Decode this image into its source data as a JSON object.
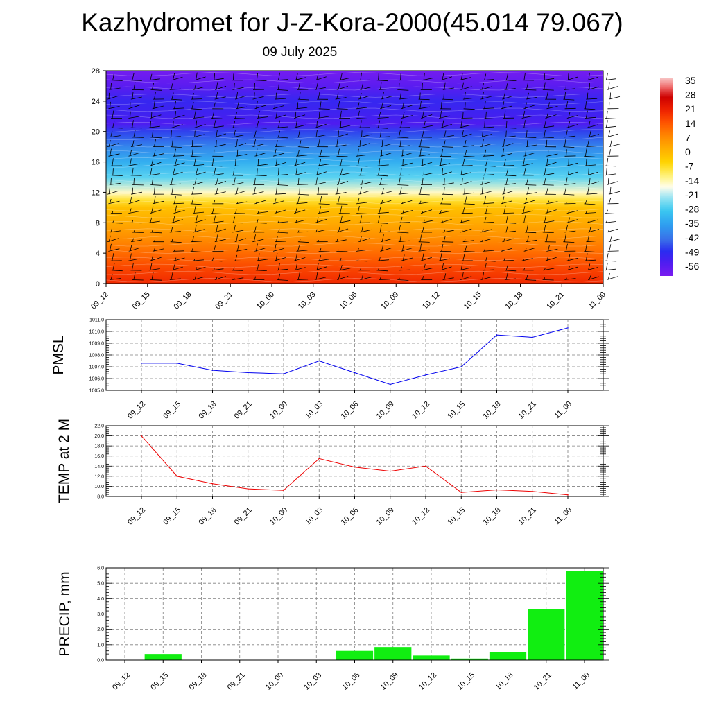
{
  "title": "Kazhydromet for J-Z-Kora-2000(45.014 79.067)",
  "subtitle": "09 July 2025",
  "colors": {
    "pressure_line": "#0000ee",
    "temp_line": "#ee0000",
    "precip_bar": "#11ee11",
    "frame": "#000000",
    "grid": "#808080"
  },
  "chart_data": [
    {
      "id": "upper-air",
      "type": "heatmap",
      "title": "",
      "xlabel": "",
      "ylabel": "",
      "categories": [
        "09_12",
        "09_15",
        "09_18",
        "09_21",
        "10_00",
        "10_03",
        "10_06",
        "10_09",
        "10_12",
        "10_15",
        "10_18",
        "10_21",
        "11_00"
      ],
      "yticks": [
        "0",
        "4",
        "8",
        "12",
        "16",
        "20",
        "24",
        "28"
      ],
      "ylim": [
        0,
        28
      ],
      "colorbar": {
        "labels": [
          "35",
          "28",
          "21",
          "14",
          "7",
          "0",
          "-7",
          "-14",
          "-21",
          "-28",
          "-35",
          "-42",
          "-49",
          "-56"
        ],
        "range": [
          -63,
          42
        ]
      },
      "temperature_profile": {
        "levels": [
          0,
          2,
          4,
          6,
          8,
          10,
          11,
          12,
          14,
          16,
          18,
          20,
          21,
          22,
          24,
          26,
          28
        ],
        "values": [
          24,
          20,
          15,
          10,
          5,
          1,
          -6,
          -14,
          -26,
          -33,
          -40,
          -48,
          -56,
          -54,
          -52,
          -58,
          -62
        ]
      },
      "overlay": "wind barbs"
    },
    {
      "id": "pmsl",
      "type": "line",
      "ylabel": "PMSL",
      "categories": [
        "09_12",
        "09_15",
        "09_18",
        "09_21",
        "10_00",
        "10_03",
        "10_06",
        "10_09",
        "10_12",
        "10_15",
        "10_18",
        "10_21",
        "11_00"
      ],
      "ylim": [
        1005.0,
        1011.0
      ],
      "yticks": [
        "1005.0",
        "1006.0",
        "1007.0",
        "1008.0",
        "1009.0",
        "1010.0",
        "1011.0"
      ],
      "series": [
        {
          "values": [
            1007.3,
            1007.3,
            1006.7,
            1006.5,
            1006.4,
            1007.5,
            1006.5,
            1005.5,
            1006.3,
            1007.0,
            1009.7,
            1009.5,
            1010.3
          ]
        }
      ],
      "grid": true
    },
    {
      "id": "temp2m",
      "type": "line",
      "ylabel": "TEMP at 2 M",
      "categories": [
        "09_12",
        "09_15",
        "09_18",
        "09_21",
        "10_00",
        "10_03",
        "10_06",
        "10_09",
        "10_12",
        "10_15",
        "10_18",
        "10_21",
        "11_00"
      ],
      "ylim": [
        8.0,
        22.0
      ],
      "yticks": [
        "8.0",
        "10.0",
        "12.0",
        "14.0",
        "16.0",
        "18.0",
        "20.0",
        "22.0"
      ],
      "series": [
        {
          "values": [
            20.0,
            12.0,
            10.5,
            9.5,
            9.2,
            15.5,
            13.8,
            13.0,
            14.0,
            8.8,
            9.3,
            9.0,
            8.3
          ]
        }
      ],
      "grid": true
    },
    {
      "id": "precip",
      "type": "bar",
      "ylabel": "PRECIP, mm",
      "categories": [
        "09_12",
        "09_15",
        "09_18",
        "09_21",
        "10_00",
        "10_03",
        "10_06",
        "10_09",
        "10_12",
        "10_15",
        "10_18",
        "10_21",
        "11_00"
      ],
      "ylim": [
        0.0,
        6.0
      ],
      "yticks": [
        "0.0",
        "1.0",
        "2.0",
        "3.0",
        "4.0",
        "5.0",
        "6.0"
      ],
      "values": [
        0.0,
        0.4,
        0.0,
        0.0,
        0.0,
        0.0,
        0.6,
        0.85,
        0.3,
        0.1,
        0.5,
        3.3,
        5.8
      ],
      "grid": true
    }
  ]
}
